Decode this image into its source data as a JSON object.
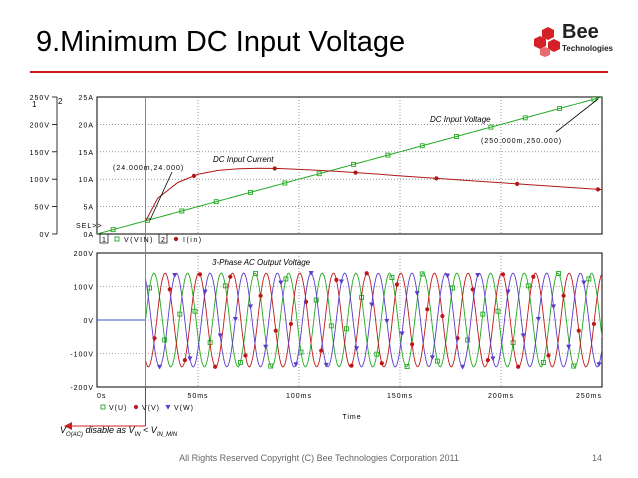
{
  "slide": {
    "title": "9.Minimum DC Input Voltage",
    "logo_word": "Bee",
    "logo_sub": "Technologies",
    "footer": "All Rights Reserved Copyright (C) Bee Technologies Corporation 2011",
    "page_number": "14",
    "note": {
      "v": "V",
      "v_sub": "O(AC)",
      "mid": " disable as V",
      "in_sub": "IN",
      "lt": " < V",
      "inmin_sub": "IN_MIN"
    },
    "colors": {
      "title_rule": "#c81e1e",
      "logo_red": "#d42027",
      "cursor": "#e05050"
    }
  },
  "chart_data": [
    {
      "type": "line",
      "panel": "top",
      "x_unit": "ms",
      "xlim": [
        0,
        250
      ],
      "left_axis": {
        "ticks": [
          "0V",
          "50V",
          "100V",
          "150V",
          "200V",
          "250V"
        ],
        "ylim": [
          0,
          250
        ],
        "marker": "1"
      },
      "right_axis": {
        "ticks": [
          "0A",
          "5A",
          "10A",
          "15A",
          "20A",
          "25A"
        ],
        "ylim": [
          0,
          25
        ],
        "marker": "2"
      },
      "sel_label": "SEL>>",
      "series": [
        {
          "name": "V(VIN)",
          "color": "#22aa22",
          "marker": "square",
          "axis": "left",
          "x": [
            0,
            250
          ],
          "y": [
            0,
            250
          ]
        },
        {
          "name": "I(in)",
          "color": "#b01818",
          "marker": "circle",
          "axis": "right",
          "x": [
            24,
            30,
            40,
            50,
            60,
            70,
            80,
            90,
            100,
            110,
            120,
            130,
            140,
            150,
            160,
            170,
            180,
            190,
            200,
            210,
            220,
            230,
            240,
            250
          ],
          "y": [
            2.3,
            6.5,
            9.4,
            10.9,
            11.6,
            11.9,
            12.0,
            11.95,
            11.8,
            11.6,
            11.4,
            11.15,
            10.9,
            10.6,
            10.35,
            10.1,
            9.85,
            9.6,
            9.35,
            9.1,
            8.85,
            8.6,
            8.35,
            8.1
          ]
        }
      ],
      "legend": [
        {
          "index": "1",
          "name": "V(VIN)",
          "color": "#22aa22"
        },
        {
          "index": "2",
          "name": "I(in)",
          "color": "#b01818"
        }
      ],
      "annotations": {
        "dc_input_voltage": "DC Input Voltage",
        "dc_input_current": "DC Input Current",
        "point_a": "(24.000m,24.000)",
        "point_b": "(250.000m,250.000)"
      }
    },
    {
      "type": "line",
      "panel": "bottom",
      "x_unit": "ms",
      "xlim": [
        0,
        250
      ],
      "ylim": [
        -200,
        200
      ],
      "y_ticks": [
        "-200V",
        "-100V",
        "0V",
        "100V",
        "200V"
      ],
      "x_ticks": [
        "0s",
        "50ms",
        "100ms",
        "150ms",
        "200ms",
        "250ms"
      ],
      "xlabel": "Time",
      "title": "3-Phase AC Output Voltage",
      "waveform": {
        "amplitude": 140,
        "frequency_hz": 60,
        "start_ms": 24,
        "phase_deg": [
          0,
          -120,
          120
        ]
      },
      "series": [
        {
          "name": "V(U)",
          "color": "#22aa22",
          "marker": "square"
        },
        {
          "name": "V(V)",
          "color": "#c01818",
          "marker": "circle"
        },
        {
          "name": "V(W)",
          "color": "#5a3cc8",
          "marker": "triangle"
        }
      ]
    }
  ]
}
